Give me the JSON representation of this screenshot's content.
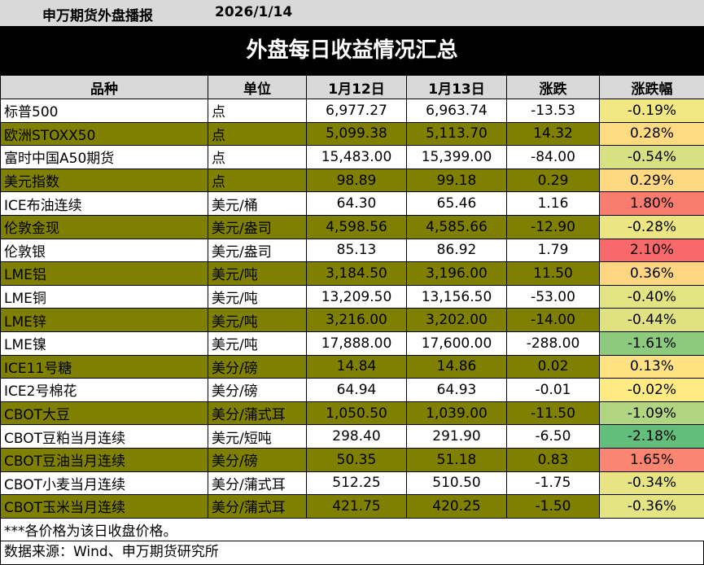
{
  "header": {
    "brand": "申万期货外盘播报",
    "date": "2026/1/14"
  },
  "title": "外盘每日收益情况汇总",
  "columns": [
    "品种",
    "单位",
    "1月12日",
    "1月13日",
    "涨跌",
    "涨跌幅"
  ],
  "colors": {
    "olive_row": "#7f7f00",
    "gain_strong": "#f8696b",
    "flat": "#ffeb84",
    "loss_strong": "#63be7b"
  },
  "rows": [
    {
      "name": "标普500",
      "unit": "点",
      "d1": "6,977.27",
      "d2": "6,963.74",
      "chg": "-13.53",
      "pct": "-0.19%",
      "pct_value": -0.19
    },
    {
      "name": "欧洲STOXX50",
      "unit": "点",
      "d1": "5,099.38",
      "d2": "5,113.70",
      "chg": "14.32",
      "pct": "0.28%",
      "pct_value": 0.28
    },
    {
      "name": "富时中国A50期货",
      "unit": "点",
      "d1": "15,483.00",
      "d2": "15,399.00",
      "chg": "-84.00",
      "pct": "-0.54%",
      "pct_value": -0.54
    },
    {
      "name": "美元指数",
      "unit": "点",
      "d1": "98.89",
      "d2": "99.18",
      "chg": "0.29",
      "pct": "0.29%",
      "pct_value": 0.29
    },
    {
      "name": "ICE布油连续",
      "unit": "美元/桶",
      "d1": "64.30",
      "d2": "65.46",
      "chg": "1.16",
      "pct": "1.80%",
      "pct_value": 1.8
    },
    {
      "name": "伦敦金现",
      "unit": "美元/盎司",
      "d1": "4,598.56",
      "d2": "4,585.66",
      "chg": "-12.90",
      "pct": "-0.28%",
      "pct_value": -0.28
    },
    {
      "name": "伦敦银",
      "unit": "美元/盎司",
      "d1": "85.13",
      "d2": "86.92",
      "chg": "1.79",
      "pct": "2.10%",
      "pct_value": 2.1
    },
    {
      "name": "LME铝",
      "unit": "美元/吨",
      "d1": "3,184.50",
      "d2": "3,196.00",
      "chg": "11.50",
      "pct": "0.36%",
      "pct_value": 0.36
    },
    {
      "name": "LME铜",
      "unit": "美元/吨",
      "d1": "13,209.50",
      "d2": "13,156.50",
      "chg": "-53.00",
      "pct": "-0.40%",
      "pct_value": -0.4
    },
    {
      "name": "LME锌",
      "unit": "美元/吨",
      "d1": "3,216.00",
      "d2": "3,202.00",
      "chg": "-14.00",
      "pct": "-0.44%",
      "pct_value": -0.44
    },
    {
      "name": "LME镍",
      "unit": "美元/吨",
      "d1": "17,888.00",
      "d2": "17,600.00",
      "chg": "-288.00",
      "pct": "-1.61%",
      "pct_value": -1.61
    },
    {
      "name": "ICE11号糖",
      "unit": "美分/磅",
      "d1": "14.84",
      "d2": "14.86",
      "chg": "0.02",
      "pct": "0.13%",
      "pct_value": 0.13
    },
    {
      "name": "ICE2号棉花",
      "unit": "美分/磅",
      "d1": "64.94",
      "d2": "64.93",
      "chg": "-0.01",
      "pct": "-0.02%",
      "pct_value": -0.02
    },
    {
      "name": "CBOT大豆",
      "unit": "美分/蒲式耳",
      "d1": "1,050.50",
      "d2": "1,039.00",
      "chg": "-11.50",
      "pct": "-1.09%",
      "pct_value": -1.09
    },
    {
      "name": "CBOT豆粕当月连续",
      "unit": "美元/短吨",
      "d1": "298.40",
      "d2": "291.90",
      "chg": "-6.50",
      "pct": "-2.18%",
      "pct_value": -2.18
    },
    {
      "name": "CBOT豆油当月连续",
      "unit": "美分/磅",
      "d1": "50.35",
      "d2": "51.18",
      "chg": "0.83",
      "pct": "1.65%",
      "pct_value": 1.65
    },
    {
      "name": "CBOT小麦当月连续",
      "unit": "美分/蒲式耳",
      "d1": "512.25",
      "d2": "510.50",
      "chg": "-1.75",
      "pct": "-0.34%",
      "pct_value": -0.34
    },
    {
      "name": "CBOT玉米当月连续",
      "unit": "美分/蒲式耳",
      "d1": "421.75",
      "d2": "420.25",
      "chg": "-1.50",
      "pct": "-0.36%",
      "pct_value": -0.36
    }
  ],
  "note": "***各价格为该日收盘价格。",
  "source": "数据来源：Wind、申万期货研究所"
}
